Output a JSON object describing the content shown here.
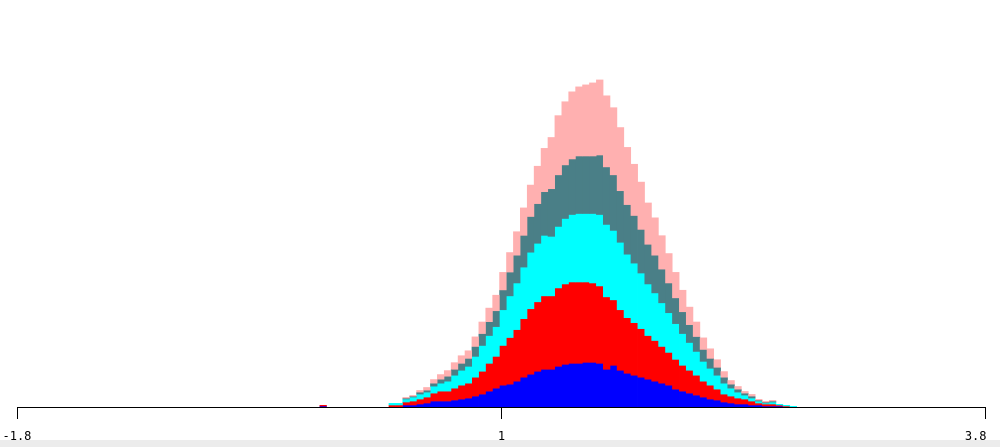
{
  "chart_data": {
    "type": "bar",
    "subtype": "stacked-histogram",
    "title": "",
    "xlabel": "",
    "ylabel": "",
    "xlim": [
      -1.8,
      3.8
    ],
    "ylim": [
      0,
      380
    ],
    "x_ticks": [
      "-1.8",
      "1",
      "3.8"
    ],
    "x_tick_values": [
      -1.8,
      1,
      3.8
    ],
    "bin_start": -0.05,
    "bin_width": 0.04,
    "series": [
      {
        "name": "blue",
        "color": "#0000ff",
        "values": [
          1,
          0,
          0,
          0,
          0,
          0,
          0,
          0,
          0,
          0,
          0,
          0,
          2,
          2,
          3,
          4,
          6,
          6,
          6,
          7,
          8,
          9,
          11,
          13,
          16,
          19,
          22,
          23,
          26,
          30,
          33,
          36,
          38,
          38,
          41,
          43,
          44,
          44,
          45,
          45,
          44,
          38,
          42,
          37,
          34,
          32,
          30,
          28,
          26,
          24,
          22,
          18,
          16,
          14,
          12,
          10,
          8,
          7,
          5,
          4,
          3,
          3,
          2,
          2,
          1,
          1,
          1,
          0,
          0
        ]
      },
      {
        "name": "red",
        "color": "#ff0000",
        "values": [
          1,
          0,
          0,
          0,
          0,
          0,
          0,
          0,
          0,
          0,
          2,
          2,
          3,
          4,
          5,
          6,
          8,
          10,
          10,
          12,
          14,
          15,
          19,
          23,
          28,
          32,
          40,
          47,
          52,
          59,
          66,
          70,
          74,
          74,
          79,
          81,
          82,
          82,
          81,
          80,
          78,
          73,
          66,
          61,
          56,
          53,
          49,
          44,
          41,
          37,
          33,
          30,
          26,
          23,
          20,
          16,
          14,
          11,
          8,
          7,
          6,
          5,
          4,
          2,
          2,
          2,
          1,
          1,
          0
        ]
      },
      {
        "name": "cyan",
        "color": "#00ffff",
        "values": [
          0,
          0,
          0,
          0,
          0,
          0,
          0,
          0,
          0,
          0,
          2,
          2,
          3,
          4,
          5,
          5,
          7,
          8,
          10,
          13,
          15,
          17,
          21,
          26,
          28,
          30,
          36,
          42,
          47,
          52,
          57,
          59,
          61,
          60,
          62,
          66,
          68,
          69,
          69,
          70,
          72,
          73,
          70,
          68,
          64,
          60,
          56,
          52,
          48,
          44,
          40,
          36,
          32,
          28,
          24,
          20,
          17,
          14,
          11,
          8,
          6,
          4,
          3,
          2,
          1,
          2,
          1,
          1,
          1
        ]
      },
      {
        "name": "teal",
        "color": "#4a7f87",
        "values": [
          0,
          0,
          0,
          0,
          0,
          0,
          0,
          0,
          0,
          0,
          0,
          0,
          1,
          1,
          2,
          2,
          3,
          4,
          5,
          6,
          7,
          8,
          10,
          12,
          14,
          16,
          20,
          24,
          28,
          32,
          36,
          40,
          44,
          48,
          52,
          54,
          56,
          58,
          58,
          58,
          60,
          58,
          56,
          52,
          50,
          48,
          44,
          40,
          38,
          34,
          30,
          26,
          22,
          18,
          15,
          12,
          10,
          8,
          6,
          4,
          3,
          2,
          2,
          1,
          1,
          1,
          0,
          0,
          0
        ]
      },
      {
        "name": "pink",
        "color": "#ffb0b0",
        "values": [
          0,
          0,
          0,
          0,
          0,
          0,
          0,
          0,
          0,
          0,
          0,
          0,
          1,
          1,
          2,
          3,
          4,
          5,
          6,
          7,
          8,
          8,
          10,
          12,
          14,
          16,
          18,
          20,
          24,
          28,
          32,
          38,
          44,
          52,
          60,
          64,
          68,
          70,
          72,
          74,
          76,
          72,
          68,
          64,
          58,
          52,
          48,
          42,
          38,
          34,
          30,
          26,
          22,
          18,
          15,
          12,
          10,
          8,
          6,
          4,
          3,
          2,
          2,
          1,
          1,
          1,
          0,
          0,
          0
        ]
      }
    ]
  }
}
